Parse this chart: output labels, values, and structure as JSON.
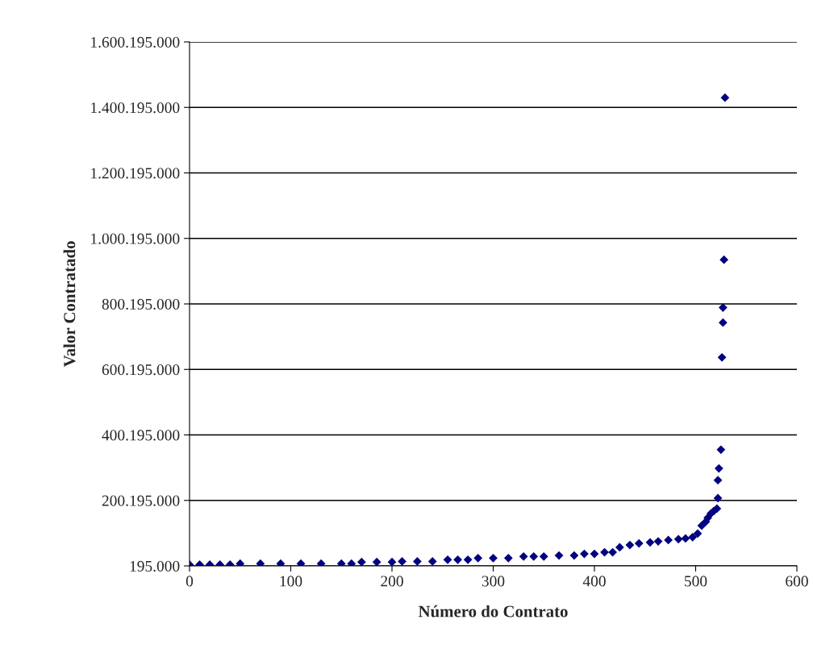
{
  "chart_data": {
    "type": "scatter",
    "xlabel": "Número do Contrato",
    "ylabel": "Valor Contratado",
    "series": [
      {
        "color": "#000080",
        "x": [
          0,
          10,
          20,
          30,
          40,
          50,
          70,
          90,
          110,
          130,
          150,
          160,
          170,
          185,
          200,
          210,
          225,
          240,
          255,
          265,
          275,
          285,
          300,
          315,
          330,
          340,
          350,
          365,
          380,
          390,
          400,
          410,
          418,
          425,
          435,
          444,
          455,
          463,
          473,
          483,
          490,
          497,
          502,
          506,
          510,
          512,
          515,
          518,
          521,
          522,
          522,
          523,
          525,
          526,
          527,
          527,
          528,
          529
        ],
        "values": [
          4000000,
          4000000,
          4000000,
          4000000,
          4000000,
          7000000,
          7000000,
          7000000,
          7000000,
          7000000,
          7000000,
          7000000,
          12000000,
          12000000,
          12000000,
          14000000,
          14000000,
          14000000,
          19000000,
          19000000,
          19000000,
          24000000,
          24000000,
          24000000,
          29000000,
          29000000,
          29000000,
          32000000,
          32000000,
          37000000,
          37000000,
          42000000,
          42000000,
          57000000,
          64000000,
          69000000,
          72000000,
          75000000,
          79000000,
          82000000,
          84000000,
          88000000,
          99000000,
          123000000,
          135000000,
          147000000,
          160000000,
          168000000,
          175000000,
          207000000,
          262000000,
          298000000,
          355000000,
          637000000,
          743000000,
          789000000,
          935000000,
          1430000000
        ]
      }
    ],
    "marker": "diamond",
    "grid": "y",
    "xlim": [
      0,
      600
    ],
    "xticks": [
      0,
      100,
      200,
      300,
      400,
      500,
      600
    ],
    "ylim": [
      195000,
      1600195000
    ],
    "yticks": [
      {
        "value": 195000,
        "label": "195.000"
      },
      {
        "value": 200195000,
        "label": "200.195.000"
      },
      {
        "value": 400195000,
        "label": "400.195.000"
      },
      {
        "value": 600195000,
        "label": "600.195.000"
      },
      {
        "value": 800195000,
        "label": "800.195.000"
      },
      {
        "value": 1000195000,
        "label": "1.000.195.000"
      },
      {
        "value": 1200195000,
        "label": "1.200.195.000"
      },
      {
        "value": 1400195000,
        "label": "1.400.195.000"
      },
      {
        "value": 1600195000,
        "label": "1.600.195.000"
      }
    ]
  }
}
